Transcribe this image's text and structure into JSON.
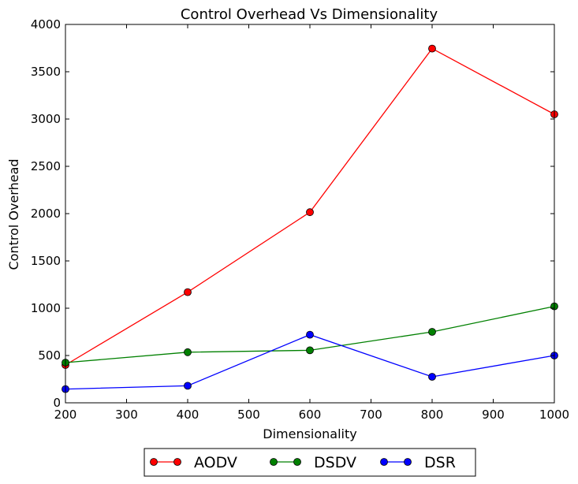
{
  "chart_data": {
    "type": "line",
    "title": "Control Overhead Vs Dimensionality",
    "xlabel": "Dimensionality",
    "ylabel": "Control Overhead",
    "x": [
      200,
      400,
      600,
      800,
      1000
    ],
    "xlim": [
      200,
      1000
    ],
    "ylim": [
      0,
      4000
    ],
    "xticks": [
      200,
      300,
      400,
      500,
      600,
      700,
      800,
      900,
      1000
    ],
    "yticks": [
      0,
      500,
      1000,
      1500,
      2000,
      2500,
      3000,
      3500,
      4000
    ],
    "grid": false,
    "legend_position": "bottom-center-outside",
    "series": [
      {
        "name": "AODV",
        "color": "#ff0000",
        "values": [
          400,
          1170,
          2015,
          3745,
          3050
        ]
      },
      {
        "name": "DSDV",
        "color": "#008000",
        "values": [
          425,
          535,
          555,
          750,
          1020
        ]
      },
      {
        "name": "DSR",
        "color": "#0000ff",
        "values": [
          145,
          180,
          720,
          275,
          500
        ]
      }
    ]
  }
}
